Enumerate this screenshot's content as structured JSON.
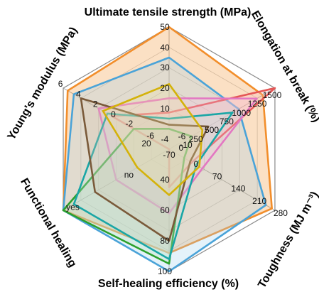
{
  "chart_data": {
    "type": "radar",
    "title": "",
    "grid": true,
    "legend": "none",
    "axes": [
      {
        "label": "Ultimate tensile strength (MPa)",
        "range": [
          -10,
          50
        ],
        "ticks": [
          "-4",
          "10",
          "20",
          "30",
          "40",
          "50"
        ]
      },
      {
        "label": "Elongation at break (%)",
        "range": [
          -250,
          1500
        ],
        "ticks": [
          "0",
          "250",
          "500",
          "750",
          "1000",
          "1250",
          "1500"
        ]
      },
      {
        "label": "Toughness (MJ m⁻³)",
        "range": [
          -70,
          280
        ],
        "ticks": [
          "0",
          "70",
          "140",
          "210",
          "280"
        ]
      },
      {
        "label": "Self-healing efficiency (%)",
        "range": [
          20,
          100
        ],
        "ticks": [
          "40",
          "60",
          "80",
          "100"
        ]
      },
      {
        "label": "Functional healing",
        "range": [
          0,
          1
        ],
        "ticks": [
          "no",
          "yes"
        ]
      },
      {
        "label": "Young's modulus (MPa)",
        "range": [
          -6,
          6
        ],
        "ticks": [
          "-6",
          "-2",
          "0",
          "2",
          "4",
          "6"
        ]
      }
    ],
    "extra_center_ticks": [
      "-6",
      "-10",
      "-70",
      "20"
    ],
    "series": [
      {
        "color": "#f28e2b",
        "fill": "#f28e2b",
        "values": [
          50,
          1300,
          270,
          88,
          1,
          5.5
        ]
      },
      {
        "color": "#4aa3d8",
        "fill": "#9dd0ee",
        "values": [
          35,
          900,
          250,
          100,
          1,
          4.8
        ]
      },
      {
        "color": "#e45756",
        "fill": "#f7b6b6",
        "values": [
          8,
          1500,
          5,
          45,
          0.0,
          0.5
        ]
      },
      {
        "color": "#e377c2",
        "fill": "#f3c2e4",
        "values": [
          15,
          1200,
          40,
          62,
          0.5,
          2.0
        ]
      },
      {
        "color": "#2ca02c",
        "fill": "#b8e3b8",
        "values": [
          0,
          120,
          -20,
          95,
          1,
          -2
        ]
      },
      {
        "color": "#1aa6a6",
        "fill": "#bfe7e7",
        "values": [
          5,
          800,
          20,
          92,
          0.9,
          1.0
        ]
      },
      {
        "color": "#7a5a3a",
        "fill": "#d6c3ac",
        "values": [
          2,
          400,
          0,
          80,
          0.7,
          4.0
        ]
      },
      {
        "color": "#d4b20a",
        "fill": "#efe3a1",
        "values": [
          22,
          300,
          30,
          50,
          0.3,
          1.5
        ]
      }
    ]
  }
}
